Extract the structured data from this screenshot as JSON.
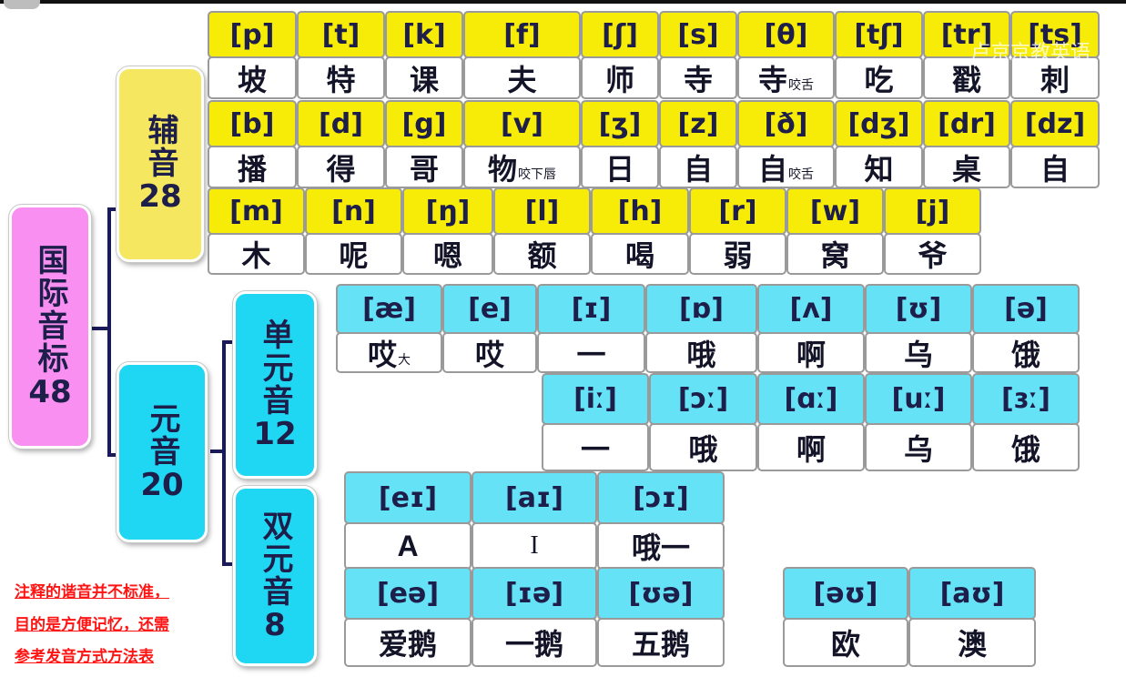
{
  "root": {
    "title": "国际音标",
    "count": "48"
  },
  "consonants": {
    "title": "辅音",
    "count": "28",
    "rows": [
      [
        {
          "ipa": "[p]",
          "han": "坡"
        },
        {
          "ipa": "[t]",
          "han": "特"
        },
        {
          "ipa": "[k]",
          "han": "课"
        },
        {
          "ipa": "[f]",
          "han": "夫"
        },
        {
          "ipa": "[ʃ]",
          "han": "师"
        },
        {
          "ipa": "[s]",
          "han": "寺"
        },
        {
          "ipa": "[θ]",
          "han": "寺",
          "note": "咬舌"
        },
        {
          "ipa": "[tʃ]",
          "han": "吃"
        },
        {
          "ipa": "[tr]",
          "han": "戳"
        },
        {
          "ipa": "[ts]",
          "han": "刺"
        }
      ],
      [
        {
          "ipa": "[b]",
          "han": "播"
        },
        {
          "ipa": "[d]",
          "han": "得"
        },
        {
          "ipa": "[g]",
          "han": "哥"
        },
        {
          "ipa": "[v]",
          "han": "物",
          "note": "咬下唇"
        },
        {
          "ipa": "[ʒ]",
          "han": "日"
        },
        {
          "ipa": "[z]",
          "han": "自"
        },
        {
          "ipa": "[ð]",
          "han": "自",
          "note": "咬舌"
        },
        {
          "ipa": "[dʒ]",
          "han": "知"
        },
        {
          "ipa": "[dr]",
          "han": "桌"
        },
        {
          "ipa": "[dz]",
          "han": "自"
        }
      ],
      [
        {
          "ipa": "[m]",
          "han": "木"
        },
        {
          "ipa": "[n]",
          "han": "呢"
        },
        {
          "ipa": "[ŋ]",
          "han": "嗯"
        },
        {
          "ipa": "[l]",
          "han": "额"
        },
        {
          "ipa": "[h]",
          "han": "喝"
        },
        {
          "ipa": "[r]",
          "han": "弱"
        },
        {
          "ipa": "[w]",
          "han": "窝"
        },
        {
          "ipa": "[j]",
          "han": "爷"
        }
      ]
    ]
  },
  "vowels": {
    "title": "元音",
    "count": "20",
    "monophthongs": {
      "title": "单元音",
      "count": "12",
      "short": [
        {
          "ipa": "[æ]",
          "han": "哎",
          "note": "大"
        },
        {
          "ipa": "[e]",
          "han": "哎"
        },
        {
          "ipa": "[ɪ]",
          "han": "一"
        },
        {
          "ipa": "[ɒ]",
          "han": "哦"
        },
        {
          "ipa": "[ʌ]",
          "han": "啊"
        },
        {
          "ipa": "[ʊ]",
          "han": "乌"
        },
        {
          "ipa": "[ə]",
          "han": "饿"
        }
      ],
      "long": [
        {
          "ipa": "[iː]",
          "han": "一"
        },
        {
          "ipa": "[ɔː]",
          "han": "哦"
        },
        {
          "ipa": "[ɑː]",
          "han": "啊"
        },
        {
          "ipa": "[uː]",
          "han": "乌"
        },
        {
          "ipa": "[ɜː]",
          "han": "饿"
        }
      ]
    },
    "diphthongs": {
      "title": "双元音",
      "count": "8",
      "row1": [
        {
          "ipa": "[eɪ]",
          "han": "A"
        },
        {
          "ipa": "[aɪ]",
          "han": "I"
        },
        {
          "ipa": "[ɔɪ]",
          "han": "哦一"
        }
      ],
      "row2": [
        {
          "ipa": "[eə]",
          "han": "爱鹅"
        },
        {
          "ipa": "[ɪə]",
          "han": "一鹅"
        },
        {
          "ipa": "[ʊə]",
          "han": "五鹅"
        }
      ],
      "row2b": [
        {
          "ipa": "[əʊ]",
          "han": "欧"
        },
        {
          "ipa": "[aʊ]",
          "han": "澳"
        }
      ]
    }
  },
  "footnote": [
    "注释的谐音并不标准，",
    "目的是方便记忆，还需",
    "参考发音方式方法表"
  ],
  "watermark": "卢京京教英语",
  "colors": {
    "yellow": "#f7ec08",
    "cyan": "#66e2f6",
    "pink": "#f98ff0",
    "box_yellow": "#f5e75f",
    "box_cyan": "#1fd7f3",
    "connector": "#1a1a5a",
    "footnote": "#ff1414"
  }
}
